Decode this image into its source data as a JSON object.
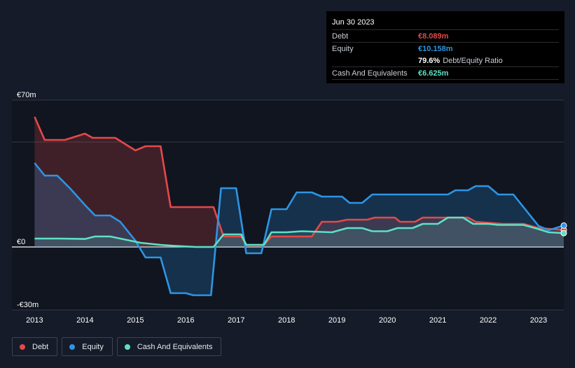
{
  "tooltip": {
    "date": "Jun 30 2023",
    "debt_label": "Debt",
    "debt_value": "€8.089m",
    "equity_label": "Equity",
    "equity_value": "€10.158m",
    "ratio_value": "79.6%",
    "ratio_label": "Debt/Equity Ratio",
    "cash_label": "Cash And Equivalents",
    "cash_value": "€6.625m"
  },
  "legend": [
    {
      "label": "Debt",
      "color": "#e64848"
    },
    {
      "label": "Equity",
      "color": "#2d95e3"
    },
    {
      "label": "Cash And Equivalents",
      "color": "#5ee0c6"
    }
  ],
  "chart_data": {
    "type": "area",
    "title": "",
    "xlabel": "",
    "ylabel": "",
    "ylim": [
      -30,
      70
    ],
    "y_tick_labels": [
      {
        "value": 70,
        "label": "€70m"
      },
      {
        "value": 0,
        "label": "€0"
      },
      {
        "value": -30,
        "label": "-€30m"
      }
    ],
    "x_tick_labels": [
      "2013",
      "2014",
      "2015",
      "2016",
      "2017",
      "2018",
      "2019",
      "2020",
      "2021",
      "2022",
      "2023"
    ],
    "x_tick_values": [
      2013,
      2014,
      2015,
      2016,
      2017,
      2018,
      2019,
      2020,
      2021,
      2022,
      2023
    ],
    "xlim": [
      2012.55,
      2023.5
    ],
    "series": [
      {
        "name": "Debt",
        "color": "#e64848",
        "points": [
          [
            2013.0,
            62
          ],
          [
            2013.2,
            51
          ],
          [
            2013.6,
            51
          ],
          [
            2014.0,
            54
          ],
          [
            2014.15,
            52
          ],
          [
            2014.6,
            52
          ],
          [
            2015.0,
            46
          ],
          [
            2015.2,
            48
          ],
          [
            2015.5,
            48
          ],
          [
            2015.7,
            19
          ],
          [
            2016.2,
            19
          ],
          [
            2016.55,
            19
          ],
          [
            2016.75,
            5
          ],
          [
            2017.1,
            5
          ],
          [
            2017.2,
            1
          ],
          [
            2017.55,
            1
          ],
          [
            2017.7,
            5
          ],
          [
            2018.5,
            5
          ],
          [
            2018.7,
            12
          ],
          [
            2019.0,
            12
          ],
          [
            2019.2,
            13
          ],
          [
            2019.6,
            13
          ],
          [
            2019.75,
            14
          ],
          [
            2020.15,
            14
          ],
          [
            2020.25,
            12
          ],
          [
            2020.55,
            12
          ],
          [
            2020.7,
            14
          ],
          [
            2021.2,
            14
          ],
          [
            2021.35,
            14
          ],
          [
            2021.6,
            14
          ],
          [
            2021.75,
            12
          ],
          [
            2022.3,
            11
          ],
          [
            2022.7,
            11
          ],
          [
            2023.0,
            9
          ],
          [
            2023.5,
            8.1
          ]
        ]
      },
      {
        "name": "Equity",
        "color": "#2d95e3",
        "points": [
          [
            2013.0,
            40
          ],
          [
            2013.2,
            34
          ],
          [
            2013.45,
            34
          ],
          [
            2013.7,
            28
          ],
          [
            2014.0,
            20
          ],
          [
            2014.2,
            15
          ],
          [
            2014.5,
            15
          ],
          [
            2014.7,
            12
          ],
          [
            2015.0,
            3
          ],
          [
            2015.2,
            -5
          ],
          [
            2015.5,
            -5
          ],
          [
            2015.7,
            -22
          ],
          [
            2016.0,
            -22
          ],
          [
            2016.15,
            -23
          ],
          [
            2016.5,
            -23
          ],
          [
            2016.7,
            28
          ],
          [
            2017.0,
            28
          ],
          [
            2017.2,
            -3
          ],
          [
            2017.5,
            -3
          ],
          [
            2017.7,
            18
          ],
          [
            2018.0,
            18
          ],
          [
            2018.2,
            26
          ],
          [
            2018.5,
            26
          ],
          [
            2018.7,
            24
          ],
          [
            2019.1,
            24
          ],
          [
            2019.25,
            21
          ],
          [
            2019.5,
            21
          ],
          [
            2019.7,
            25
          ],
          [
            2020.2,
            25
          ],
          [
            2020.6,
            25
          ],
          [
            2020.8,
            25
          ],
          [
            2021.2,
            25
          ],
          [
            2021.35,
            27
          ],
          [
            2021.6,
            27
          ],
          [
            2021.75,
            29
          ],
          [
            2022.0,
            29
          ],
          [
            2022.2,
            25
          ],
          [
            2022.5,
            25
          ],
          [
            2022.8,
            16
          ],
          [
            2023.0,
            10
          ],
          [
            2023.2,
            8
          ],
          [
            2023.5,
            10.2
          ]
        ]
      },
      {
        "name": "Cash And Equivalents",
        "color": "#5ee0c6",
        "points": [
          [
            2013.0,
            4
          ],
          [
            2013.5,
            4
          ],
          [
            2014.0,
            3.8
          ],
          [
            2014.2,
            5
          ],
          [
            2014.5,
            5
          ],
          [
            2014.8,
            3.5
          ],
          [
            2015.1,
            2
          ],
          [
            2015.5,
            1
          ],
          [
            2015.8,
            0.5
          ],
          [
            2016.2,
            0
          ],
          [
            2016.55,
            0
          ],
          [
            2016.75,
            6
          ],
          [
            2017.1,
            6
          ],
          [
            2017.2,
            1
          ],
          [
            2017.55,
            1
          ],
          [
            2017.7,
            7
          ],
          [
            2018.0,
            7
          ],
          [
            2018.3,
            7.5
          ],
          [
            2018.9,
            7
          ],
          [
            2019.2,
            9
          ],
          [
            2019.5,
            9
          ],
          [
            2019.7,
            7.5
          ],
          [
            2020.0,
            7.5
          ],
          [
            2020.2,
            9
          ],
          [
            2020.5,
            9
          ],
          [
            2020.7,
            11
          ],
          [
            2021.0,
            11
          ],
          [
            2021.2,
            14
          ],
          [
            2021.5,
            14
          ],
          [
            2021.7,
            11
          ],
          [
            2022.0,
            11
          ],
          [
            2022.2,
            10.5
          ],
          [
            2022.7,
            10.5
          ],
          [
            2023.0,
            8.5
          ],
          [
            2023.2,
            7
          ],
          [
            2023.5,
            6.6
          ]
        ]
      }
    ]
  }
}
